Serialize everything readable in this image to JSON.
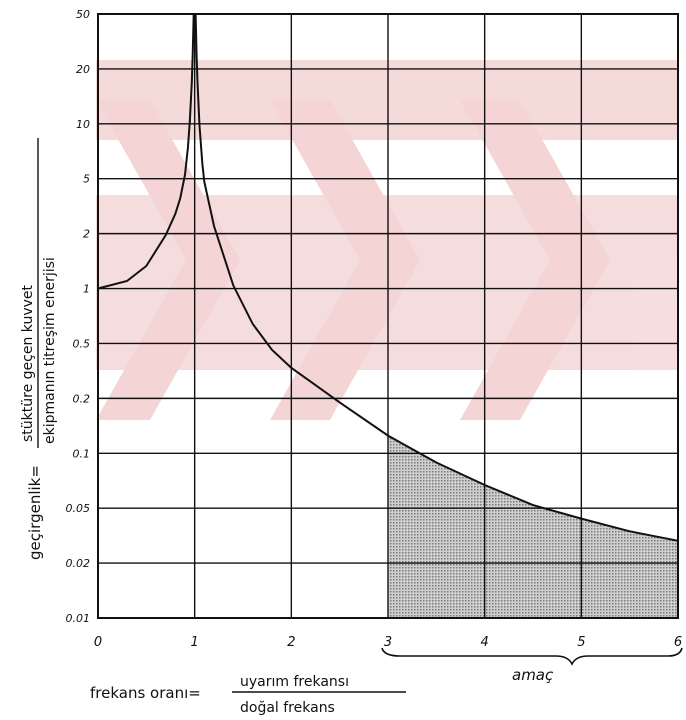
{
  "chart_data": {
    "type": "line",
    "xlabel_prefix": "frekans oranı=",
    "xlabel_numerator": "uyarım frekansı",
    "xlabel_denominator": "doğal frekans",
    "ylabel_prefix": "geçirgenlik=",
    "ylabel_numerator": "stüktüre geçen kuvvet",
    "ylabel_denominator": "ekipmanın titreşim enerjisi",
    "annotation": "amaç",
    "annotation_range": [
      3,
      6
    ],
    "x_ticks": [
      "0",
      "1",
      "2",
      "3",
      "4",
      "5",
      "6"
    ],
    "y_ticks": [
      "0.01",
      "0.02",
      "0.05",
      "0.1",
      "0.2",
      "0.5",
      "1",
      "2",
      "5",
      "10",
      "20",
      "50"
    ],
    "y_tick_values": [
      0.01,
      0.02,
      0.05,
      0.1,
      0.2,
      0.5,
      1,
      2,
      5,
      10,
      20,
      50
    ],
    "xlim": [
      0,
      6
    ],
    "ylim": [
      0.01,
      50
    ],
    "y_scale": "log-like (ticks 1-2-5 per decade, evenly spaced)",
    "shaded_region_x": [
      3,
      6
    ],
    "grid": true,
    "series": [
      {
        "points_left": [
          [
            0,
            1
          ],
          [
            0.3,
            1.1
          ],
          [
            0.5,
            1.33
          ],
          [
            0.7,
            1.96
          ],
          [
            0.8,
            2.78
          ],
          [
            0.85,
            3.6
          ],
          [
            0.9,
            5.26
          ],
          [
            0.93,
            7.4
          ],
          [
            0.95,
            10.3
          ],
          [
            0.97,
            16.9
          ],
          [
            0.98,
            25.3
          ],
          [
            0.99,
            50
          ]
        ],
        "points_right": [
          [
            1.01,
            50
          ],
          [
            1.02,
            24.8
          ],
          [
            1.03,
            16.4
          ],
          [
            1.05,
            9.76
          ],
          [
            1.08,
            6.0
          ],
          [
            1.1,
            4.76
          ],
          [
            1.2,
            2.27
          ],
          [
            1.4,
            1.04
          ],
          [
            1.6,
            0.64
          ],
          [
            1.8,
            0.45
          ],
          [
            2,
            0.333
          ],
          [
            2.5,
            0.19
          ],
          [
            3,
            0.125
          ],
          [
            3.5,
            0.089
          ],
          [
            4,
            0.067
          ],
          [
            4.5,
            0.052
          ],
          [
            5,
            0.042
          ],
          [
            5.5,
            0.034
          ],
          [
            6,
            0.029
          ]
        ]
      }
    ]
  }
}
